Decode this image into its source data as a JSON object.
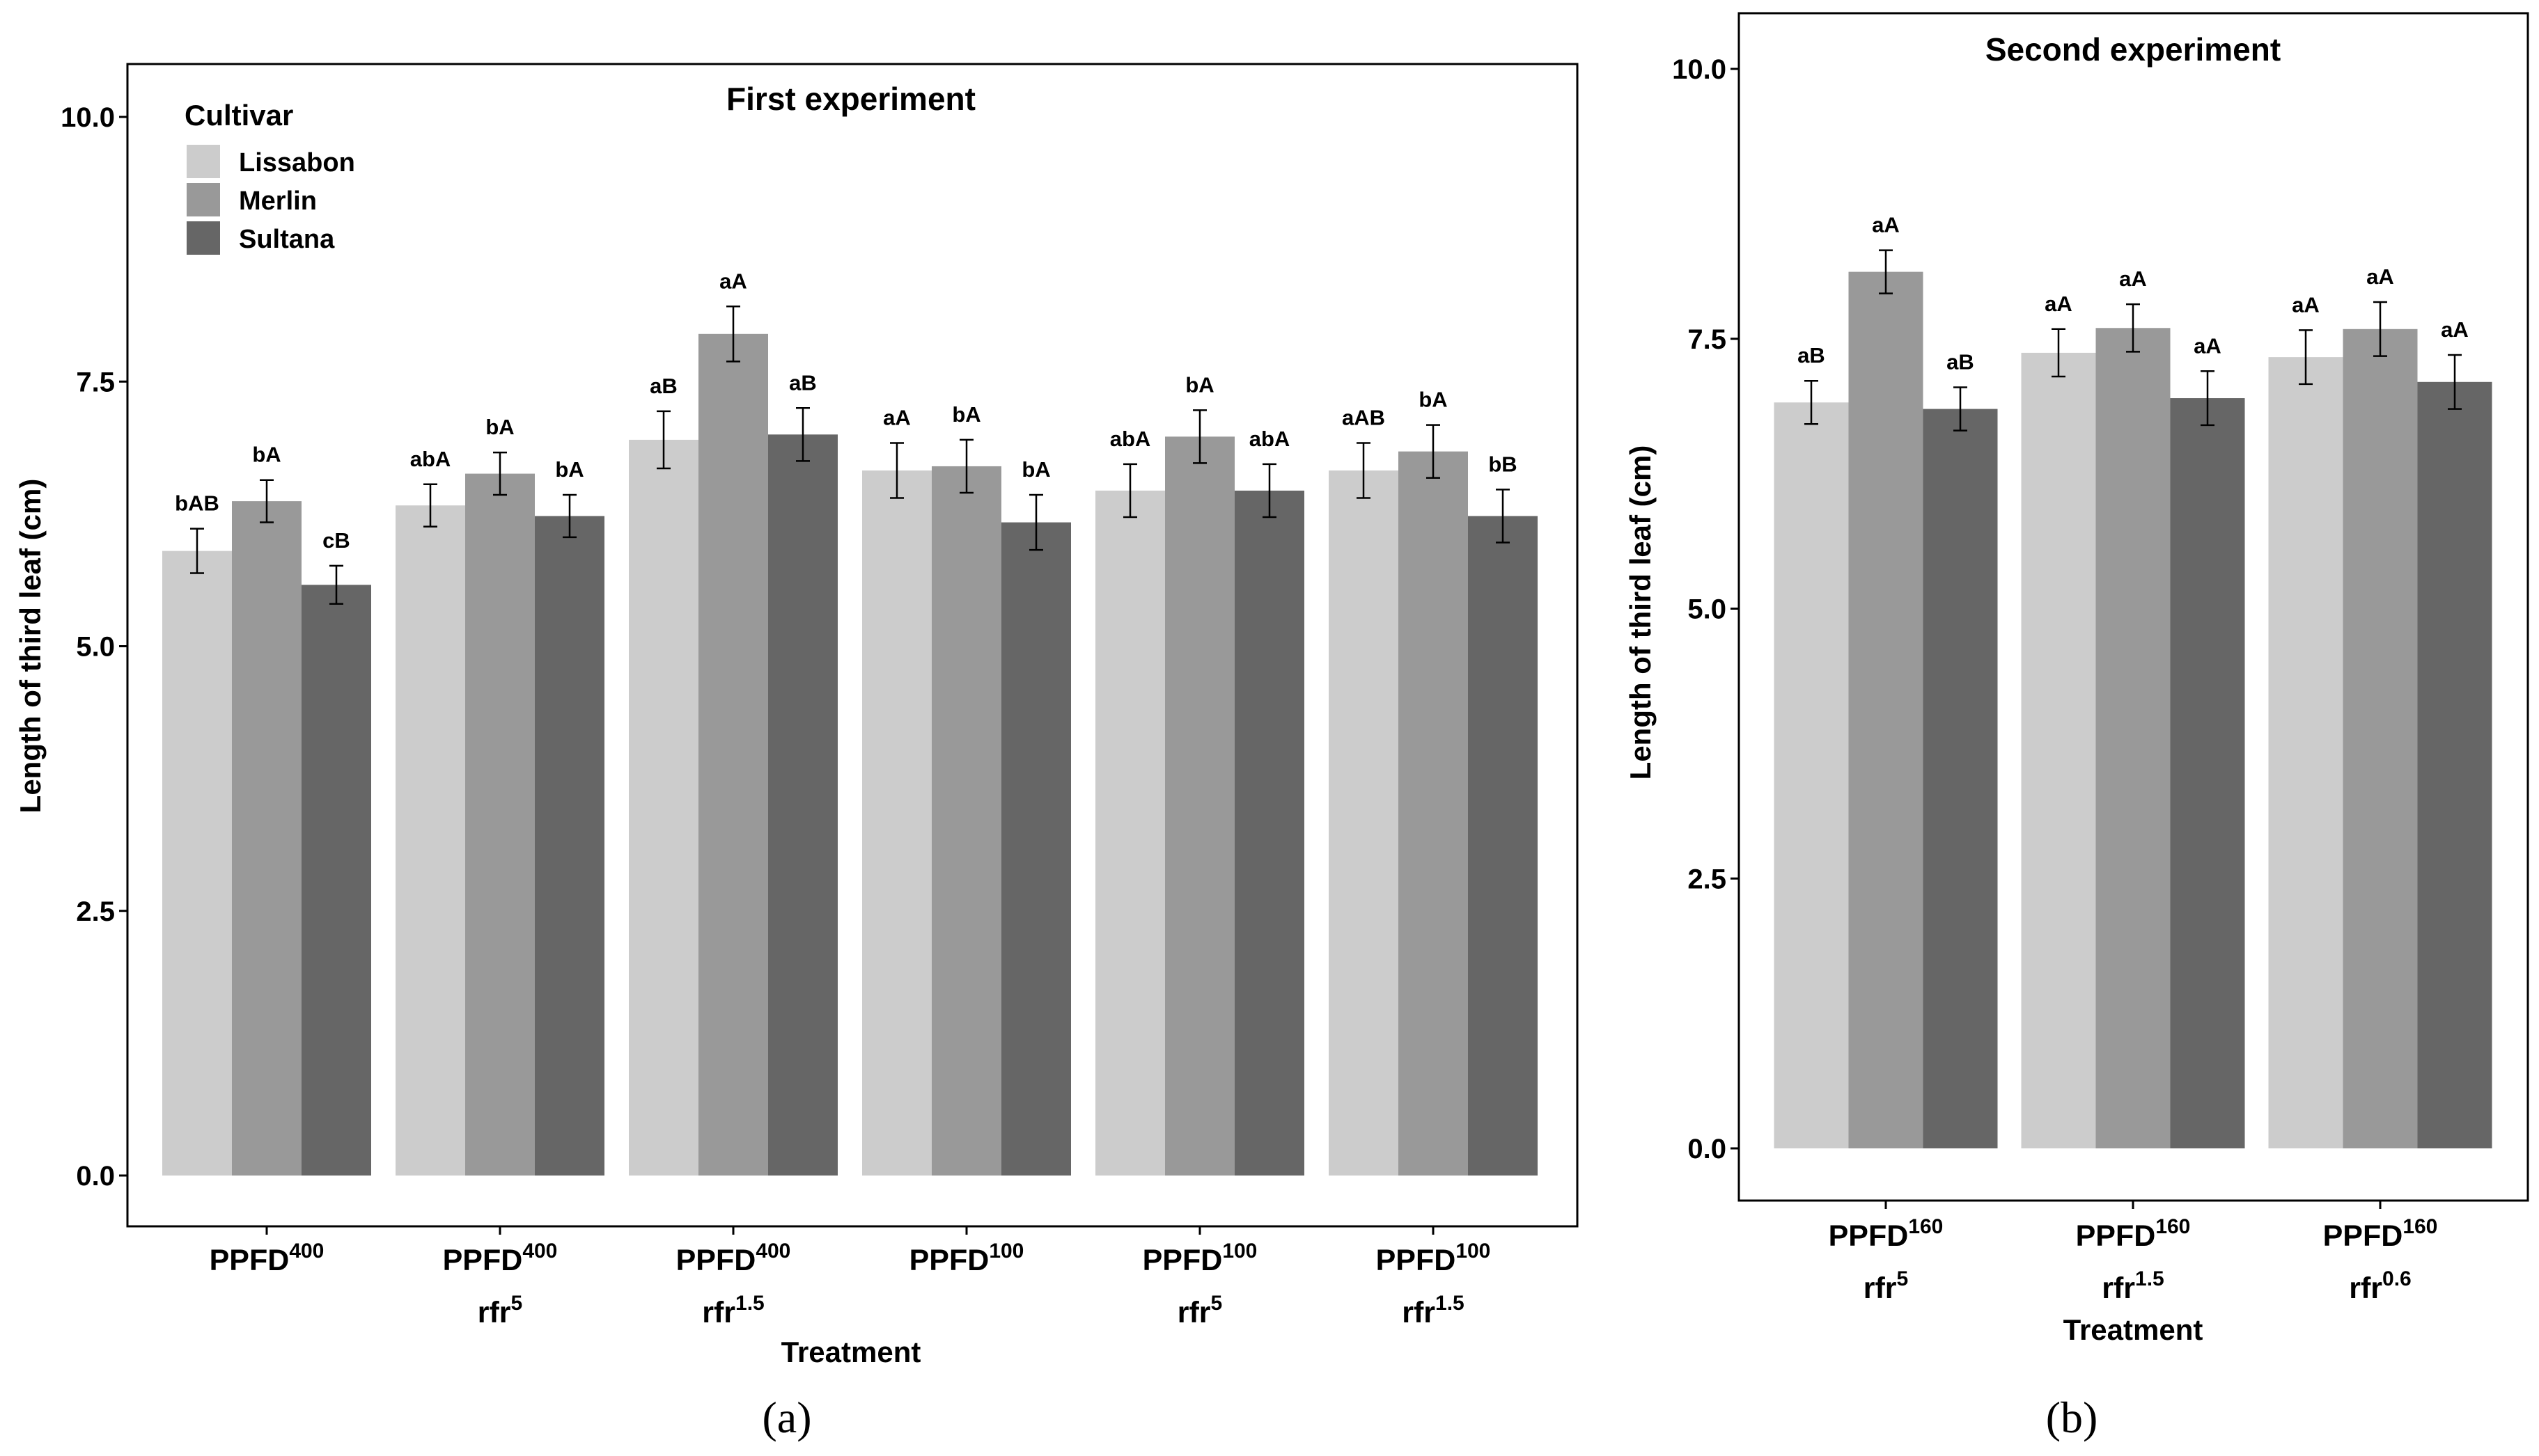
{
  "chart_data": [
    {
      "type": "bar",
      "title": "First experiment",
      "xlabel": "Treatment",
      "ylabel": "Length of third leaf (cm)",
      "ylim": [
        0,
        10
      ],
      "yticks": [
        "0.0",
        "2.5",
        "5.0",
        "7.5",
        "10.0"
      ],
      "grid": false,
      "legend": {
        "title": "Cultivar",
        "placement": "top-left",
        "entries": [
          "Lissabon",
          "Merlin",
          "Sultana"
        ]
      },
      "categories": [
        {
          "line1": "PPFD",
          "sup1": "400",
          "line2": "",
          "sup2": ""
        },
        {
          "line1": "PPFD",
          "sup1": "400",
          "line2": "rfr",
          "sup2": "5"
        },
        {
          "line1": "PPFD",
          "sup1": "400",
          "line2": "rfr",
          "sup2": "1.5"
        },
        {
          "line1": "PPFD",
          "sup1": "100",
          "line2": "",
          "sup2": ""
        },
        {
          "line1": "PPFD",
          "sup1": "100",
          "line2": "rfr",
          "sup2": "5"
        },
        {
          "line1": "PPFD",
          "sup1": "100",
          "line2": "rfr",
          "sup2": "1.5"
        }
      ],
      "series": [
        {
          "name": "Lissabon",
          "color": "#cccccc",
          "values": [
            5.9,
            6.33,
            6.95,
            6.66,
            6.47,
            6.66
          ],
          "errors": [
            0.21,
            0.2,
            0.27,
            0.26,
            0.25,
            0.26
          ],
          "labels": [
            "bAB",
            "abA",
            "aB",
            "aA",
            "abA",
            "aAB"
          ]
        },
        {
          "name": "Merlin",
          "color": "#999999",
          "values": [
            6.37,
            6.63,
            7.95,
            6.7,
            6.98,
            6.84
          ],
          "errors": [
            0.2,
            0.2,
            0.26,
            0.25,
            0.25,
            0.25
          ],
          "labels": [
            "bA",
            "bA",
            "aA",
            "bA",
            "bA",
            "bA"
          ]
        },
        {
          "name": "Sultana",
          "color": "#666666",
          "values": [
            5.58,
            6.23,
            7.0,
            6.17,
            6.47,
            6.23
          ],
          "errors": [
            0.18,
            0.2,
            0.25,
            0.26,
            0.25,
            0.25
          ],
          "labels": [
            "cB",
            "bA",
            "aB",
            "bA",
            "abA",
            "bB"
          ]
        }
      ],
      "panel_label": "(a)"
    },
    {
      "type": "bar",
      "title": "Second experiment",
      "xlabel": "Treatment",
      "ylabel": "Length of third leaf (cm)",
      "ylim": [
        0,
        10
      ],
      "yticks": [
        "0.0",
        "2.5",
        "5.0",
        "7.5",
        "10.0"
      ],
      "grid": false,
      "categories": [
        {
          "line1": "PPFD",
          "sup1": "160",
          "line2": "rfr",
          "sup2": "5"
        },
        {
          "line1": "PPFD",
          "sup1": "160",
          "line2": "rfr",
          "sup2": "1.5"
        },
        {
          "line1": "PPFD",
          "sup1": "160",
          "line2": "rfr",
          "sup2": "0.6"
        }
      ],
      "series": [
        {
          "name": "Lissabon",
          "color": "#cccccc",
          "values": [
            6.91,
            7.37,
            7.33
          ],
          "errors": [
            0.2,
            0.22,
            0.25
          ],
          "labels": [
            "aB",
            "aA",
            "aA"
          ]
        },
        {
          "name": "Merlin",
          "color": "#999999",
          "values": [
            8.12,
            7.6,
            7.59
          ],
          "errors": [
            0.2,
            0.22,
            0.25
          ],
          "labels": [
            "aA",
            "aA",
            "aA"
          ]
        },
        {
          "name": "Sultana",
          "color": "#666666",
          "values": [
            6.85,
            6.95,
            7.1
          ],
          "errors": [
            0.2,
            0.25,
            0.25
          ],
          "labels": [
            "aB",
            "aA",
            "aA"
          ]
        }
      ],
      "panel_label": "(b)"
    }
  ]
}
